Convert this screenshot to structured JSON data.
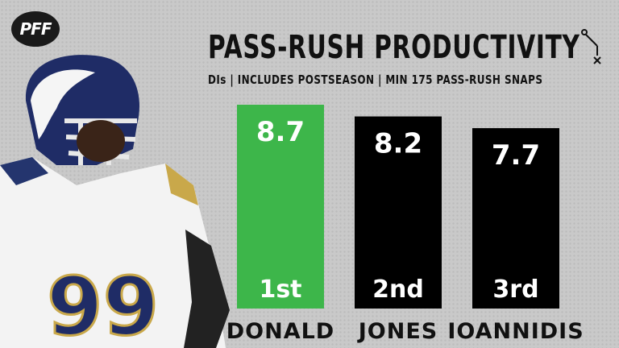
{
  "logo": {
    "text": "PFF"
  },
  "icons": {
    "logo": "pff-logo",
    "play": "football-play-diagram-icon",
    "player": "rams-player-photo"
  },
  "colors": {
    "highlight": "#3db64a",
    "bar": "#000000",
    "background": "#c9c9c9"
  },
  "chart_data": {
    "type": "bar",
    "title": "PASS-RUSH PRODUCTIVITY",
    "subtitle": "DIs | INCLUDES POSTSEASON | MIN 175 PASS-RUSH SNAPS",
    "categories": [
      "DONALD",
      "JONES",
      "IOANNIDIS"
    ],
    "values": [
      8.7,
      8.2,
      7.7
    ],
    "value_labels": [
      "8.7",
      "8.2",
      "7.7"
    ],
    "ranks": [
      "1st",
      "2nd",
      "3rd"
    ],
    "highlight_index": 0,
    "ylim": [
      0,
      8.7
    ],
    "grid": false,
    "legend": "none"
  }
}
